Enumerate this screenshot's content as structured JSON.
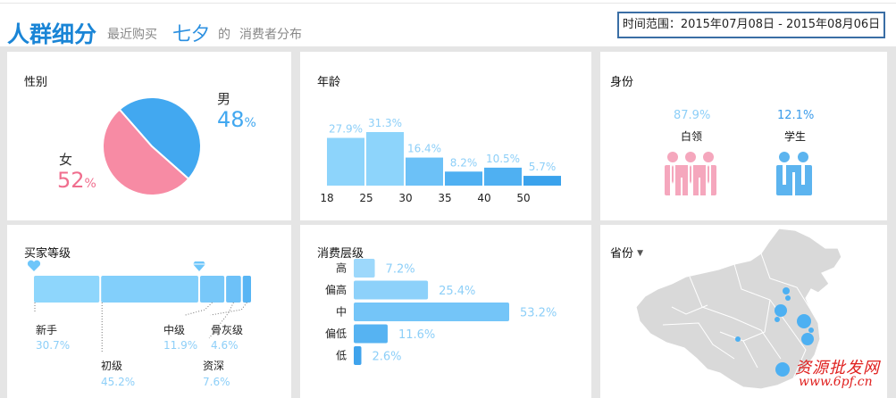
{
  "header": {
    "title": "人群细分",
    "subtitle": "最近购买",
    "product": "七夕",
    "connector": "的",
    "tail": "消费者分布",
    "time_range": "时间范围：2015年07月08日 - 2015年08月06日"
  },
  "gender": {
    "title": "性别",
    "male_label": "男",
    "male_value": "48",
    "female_label": "女",
    "female_value": "52",
    "pct": "%",
    "colors": {
      "male": "#42a8f0",
      "female": "#f78ba4"
    }
  },
  "age": {
    "title": "年龄",
    "ticks": [
      "18",
      "25",
      "30",
      "35",
      "40",
      "50"
    ]
  },
  "identity": {
    "title": "身份",
    "white_collar_value": "87.9%",
    "white_collar_label": "白领",
    "student_value": "12.1%",
    "student_label": "学生"
  },
  "buyer_level": {
    "title": "买家等级",
    "levels": [
      {
        "label": "新手",
        "value": "30.7%"
      },
      {
        "label": "初级",
        "value": "45.2%"
      },
      {
        "label": "中级",
        "value": "11.9%"
      },
      {
        "label": "资深",
        "value": "7.6%"
      },
      {
        "label": "骨灰级",
        "value": "4.6%"
      }
    ]
  },
  "consumption": {
    "title": "消费层级"
  },
  "province": {
    "title": "省份",
    "dropdown_icon": "caret-down-icon"
  },
  "watermark": {
    "text": "资源批发网",
    "url": "www.6pf.cn"
  },
  "chart_data": [
    {
      "type": "pie",
      "title": "性别",
      "categories": [
        "男",
        "女"
      ],
      "values": [
        48,
        52
      ],
      "colors": [
        "#42a8f0",
        "#f78ba4"
      ]
    },
    {
      "type": "bar",
      "title": "年龄",
      "categories": [
        "18-25",
        "25-30",
        "30-35",
        "35-40",
        "40-50",
        "50+"
      ],
      "values": [
        27.9,
        31.3,
        16.4,
        8.2,
        10.5,
        5.7
      ],
      "labels": [
        "27.9%",
        "31.3%",
        "16.4%",
        "8.2%",
        "10.5%",
        "5.7%"
      ],
      "colors": [
        "#8dd4fb",
        "#8dd4fb",
        "#6cc1f7",
        "#4fb0f2",
        "#4fb0f2",
        "#3aa2ec"
      ]
    },
    {
      "type": "bar",
      "title": "消费层级",
      "orientation": "horizontal",
      "categories": [
        "高",
        "偏高",
        "中",
        "偏低",
        "低"
      ],
      "values": [
        7.2,
        25.4,
        53.2,
        11.6,
        2.6
      ],
      "labels": [
        "7.2%",
        "25.4%",
        "53.2%",
        "11.6%",
        "2.6%"
      ],
      "colors": [
        "#9dd8fb",
        "#8dd1fa",
        "#74c5f8",
        "#56b3f2",
        "#3fa3ec"
      ]
    }
  ]
}
